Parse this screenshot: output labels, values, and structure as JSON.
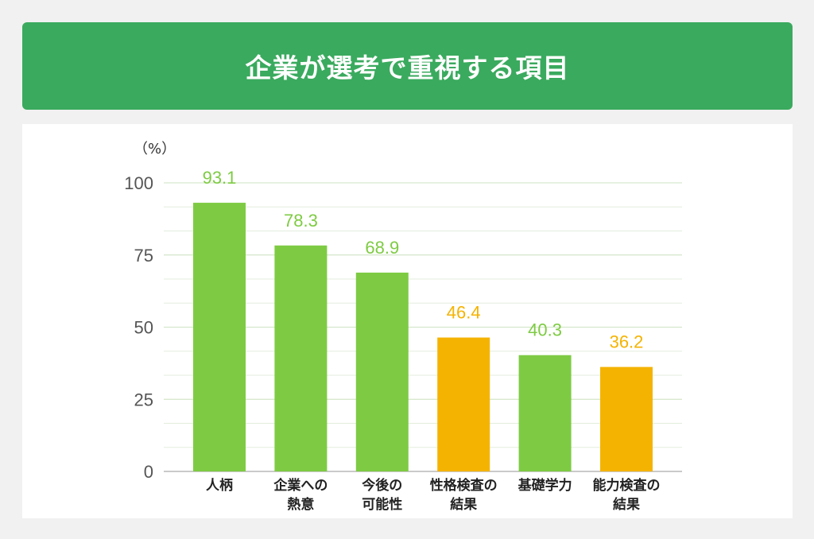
{
  "header": {
    "title": "企業が選考で重視する項目"
  },
  "chart_data": {
    "type": "bar",
    "unit_label": "（%）",
    "title": "",
    "xlabel": "",
    "ylabel": "",
    "ylim": [
      0,
      100
    ],
    "yticks": [
      0,
      25,
      50,
      75,
      100
    ],
    "minor_gridlines_every": 8.333,
    "grid": true,
    "legend": "none",
    "categories": [
      [
        "人柄"
      ],
      [
        "企業への",
        "熱意"
      ],
      [
        "今後の",
        "可能性"
      ],
      [
        "性格検査の",
        "結果"
      ],
      [
        "基礎学力"
      ],
      [
        "能力検査の",
        "結果"
      ]
    ],
    "values": [
      93.1,
      78.3,
      68.9,
      46.4,
      40.3,
      36.2
    ],
    "value_labels": [
      "93.1",
      "78.3",
      "68.9",
      "46.4",
      "40.3",
      "36.2"
    ],
    "bar_colors": [
      "#7ecb43",
      "#7ecb43",
      "#7ecb43",
      "#f5b301",
      "#7ecb43",
      "#f5b301"
    ],
    "label_colors": [
      "#7ecb43",
      "#7ecb43",
      "#7ecb43",
      "#f5b301",
      "#7ecb43",
      "#f5b301"
    ]
  }
}
